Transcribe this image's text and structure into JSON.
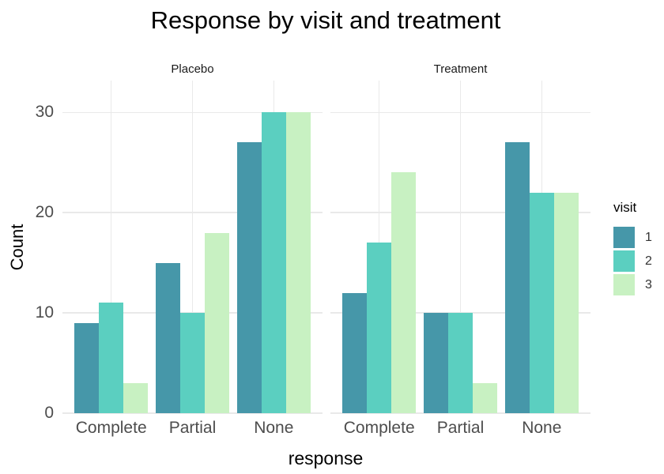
{
  "chart_data": {
    "type": "bar",
    "title": "Response by visit and treatment",
    "xlabel": "response",
    "ylabel": "Count",
    "categories": [
      "Complete",
      "Partial",
      "None"
    ],
    "facets": [
      {
        "label": "Placebo",
        "series": [
          {
            "name": "1",
            "values": [
              9,
              15,
              27
            ]
          },
          {
            "name": "2",
            "values": [
              11,
              10,
              30
            ]
          },
          {
            "name": "3",
            "values": [
              3,
              18,
              30
            ]
          }
        ]
      },
      {
        "label": "Treatment",
        "series": [
          {
            "name": "1",
            "values": [
              12,
              10,
              27
            ]
          },
          {
            "name": "2",
            "values": [
              17,
              10,
              22
            ]
          },
          {
            "name": "3",
            "values": [
              24,
              3,
              22
            ]
          }
        ]
      }
    ],
    "legend": {
      "title": "visit",
      "entries": [
        "1",
        "2",
        "3"
      ],
      "position": "right"
    },
    "colors": [
      "#4697a9",
      "#5bcfc0",
      "#c8f1c2"
    ],
    "yticks": [
      0,
      10,
      20,
      30
    ],
    "ylim": [
      0,
      33.2
    ],
    "grid": "major-only",
    "gridline_color": "#e9e9e9",
    "tick_label_color": "#4d4d4d",
    "background": "#ffffff"
  }
}
